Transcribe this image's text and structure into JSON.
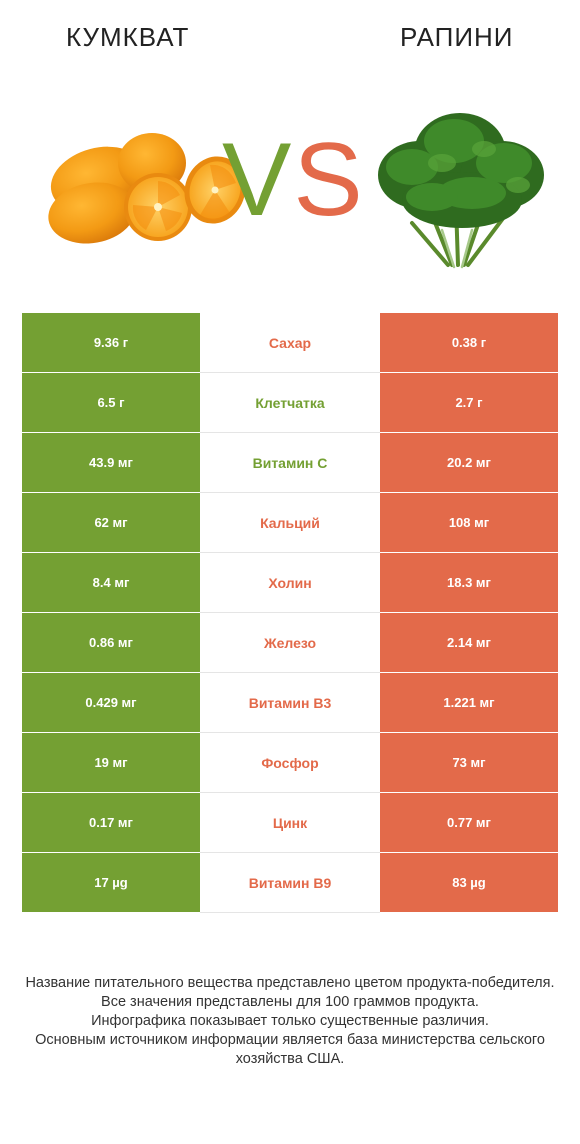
{
  "left_food": {
    "name": "КУМКВАТ",
    "color": "#74a033"
  },
  "right_food": {
    "name": "РАПИНИ",
    "color": "#e36a4a"
  },
  "vs": {
    "v": "V",
    "s": "S"
  },
  "rows": [
    {
      "left": "9.36 г",
      "name": "Сахар",
      "right": "0.38 г",
      "winner": "right"
    },
    {
      "left": "6.5 г",
      "name": "Клетчатка",
      "right": "2.7 г",
      "winner": "left"
    },
    {
      "left": "43.9 мг",
      "name": "Витамин C",
      "right": "20.2 мг",
      "winner": "left"
    },
    {
      "left": "62 мг",
      "name": "Кальций",
      "right": "108 мг",
      "winner": "right"
    },
    {
      "left": "8.4 мг",
      "name": "Холин",
      "right": "18.3 мг",
      "winner": "right"
    },
    {
      "left": "0.86 мг",
      "name": "Железо",
      "right": "2.14 мг",
      "winner": "right"
    },
    {
      "left": "0.429 мг",
      "name": "Витамин B3",
      "right": "1.221 мг",
      "winner": "right"
    },
    {
      "left": "19 мг",
      "name": "Фосфор",
      "right": "73 мг",
      "winner": "right"
    },
    {
      "left": "0.17 мг",
      "name": "Цинк",
      "right": "0.77 мг",
      "winner": "right"
    },
    {
      "left": "17 µg",
      "name": "Витамин B9",
      "right": "83 µg",
      "winner": "right"
    }
  ],
  "footer": [
    "Название питательного вещества представлено цветом продукта-победителя.",
    "Все значения представлены для 100 граммов продукта.",
    "Инфографика показывает только существенные различия.",
    "Основным источником информации является база министерства сельского хозяйства США."
  ]
}
